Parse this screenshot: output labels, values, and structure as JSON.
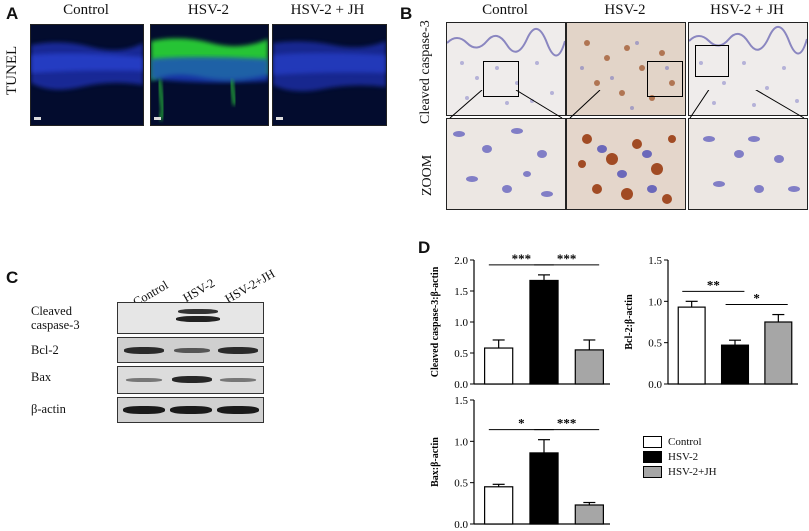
{
  "panel_a": {
    "letter": "A",
    "row_label": "TUNEL",
    "columns": [
      "Control",
      "HSV-2",
      "HSV-2 + JH"
    ]
  },
  "panel_b": {
    "letter": "B",
    "columns": [
      "Control",
      "HSV-2",
      "HSV-2 + JH"
    ],
    "row_labels": [
      "Cleaved caspase-3",
      "ZOOM"
    ]
  },
  "panel_c": {
    "letter": "C",
    "columns": [
      "Control",
      "HSV-2",
      "HSV-2+JH"
    ],
    "rows": [
      "Cleaved caspase-3",
      "Bcl-2",
      "Bax",
      "β-actin"
    ],
    "row_label_lines": [
      [
        "Cleaved",
        "caspase-3"
      ],
      [
        "Bcl-2"
      ],
      [
        "Bax"
      ],
      [
        "β-actin"
      ]
    ]
  },
  "panel_d": {
    "letter": "D",
    "legend": [
      {
        "label": "Control",
        "color": "#ffffff"
      },
      {
        "label": "HSV-2",
        "color": "#000000"
      },
      {
        "label": "HSV-2+JH",
        "color": "#a6a6a6"
      }
    ]
  },
  "chart_data": [
    {
      "type": "bar",
      "ylabel": "Cleaved caspase-3:β-actin",
      "categories": [
        "Control",
        "HSV-2",
        "HSV-2+JH"
      ],
      "values": [
        0.58,
        1.67,
        0.55
      ],
      "errors": [
        0.13,
        0.09,
        0.16
      ],
      "ylim": [
        0,
        2.0
      ],
      "yticks": [
        "0.0",
        "0.5",
        "1.0",
        "1.5",
        "2.0"
      ],
      "tick_values": [
        0,
        0.5,
        1.0,
        1.5,
        2.0
      ],
      "significance": [
        {
          "from": 0,
          "to": 1,
          "label": "***"
        },
        {
          "from": 1,
          "to": 2,
          "label": "***"
        }
      ]
    },
    {
      "type": "bar",
      "ylabel": "Bcl-2:β-actin",
      "categories": [
        "Control",
        "HSV-2",
        "HSV-2+JH"
      ],
      "values": [
        0.93,
        0.47,
        0.75
      ],
      "errors": [
        0.07,
        0.06,
        0.09
      ],
      "ylim": [
        0,
        1.5
      ],
      "yticks": [
        "0.0",
        "0.5",
        "1.0",
        "1.5"
      ],
      "tick_values": [
        0,
        0.5,
        1.0,
        1.5
      ],
      "significance": [
        {
          "from": 0,
          "to": 1,
          "label": "**"
        },
        {
          "from": 1,
          "to": 2,
          "label": "*"
        }
      ]
    },
    {
      "type": "bar",
      "ylabel": "Bax:β-actin",
      "categories": [
        "Control",
        "HSV-2",
        "HSV-2+JH"
      ],
      "values": [
        0.45,
        0.86,
        0.23
      ],
      "errors": [
        0.03,
        0.16,
        0.03
      ],
      "ylim": [
        0,
        1.5
      ],
      "yticks": [
        "0.0",
        "0.5",
        "1.0",
        "1.5"
      ],
      "tick_values": [
        0,
        0.5,
        1.0,
        1.5
      ],
      "significance": [
        {
          "from": 0,
          "to": 1,
          "label": "*"
        },
        {
          "from": 1,
          "to": 2,
          "label": "***"
        }
      ]
    }
  ]
}
